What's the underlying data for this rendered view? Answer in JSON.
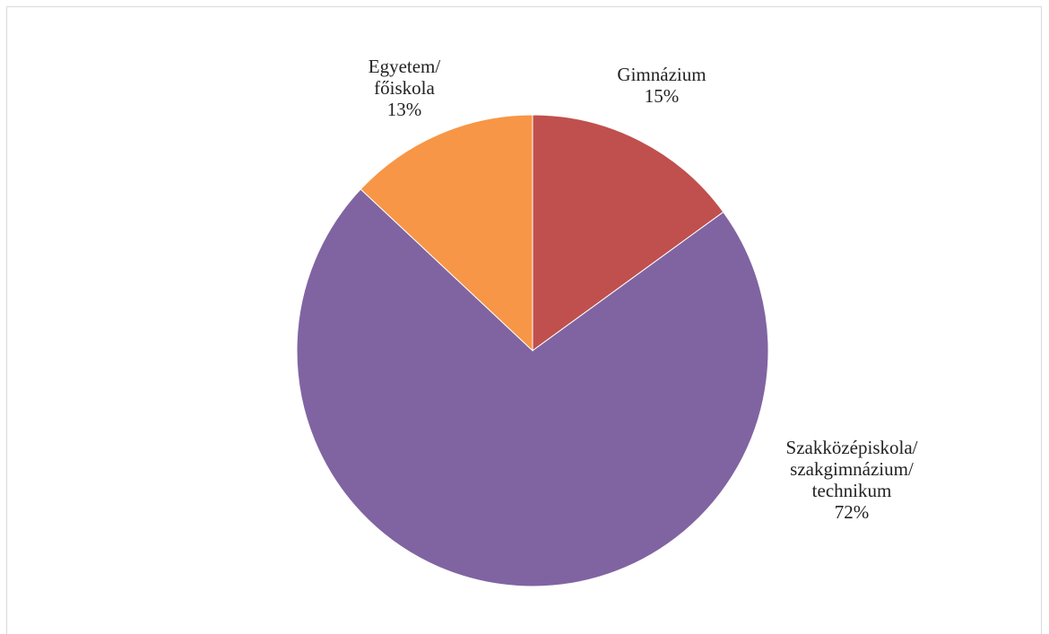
{
  "chart_data": {
    "type": "pie",
    "slices": [
      {
        "label_lines": [
          "Gimnázium"
        ],
        "value": 15,
        "value_label": "15%",
        "color": "#c0504d"
      },
      {
        "label_lines": [
          "Szakközépiskola/",
          "szakgimnázium/",
          "technikum"
        ],
        "value": 72,
        "value_label": "72%",
        "color": "#8064a2"
      },
      {
        "label_lines": [
          "Egyetem/",
          "főiskola"
        ],
        "value": 13,
        "value_label": "13%",
        "color": "#f79646"
      }
    ],
    "start_angle": "12 o'clock",
    "direction": "clockwise",
    "data_labels": "outside",
    "legend": "none"
  }
}
